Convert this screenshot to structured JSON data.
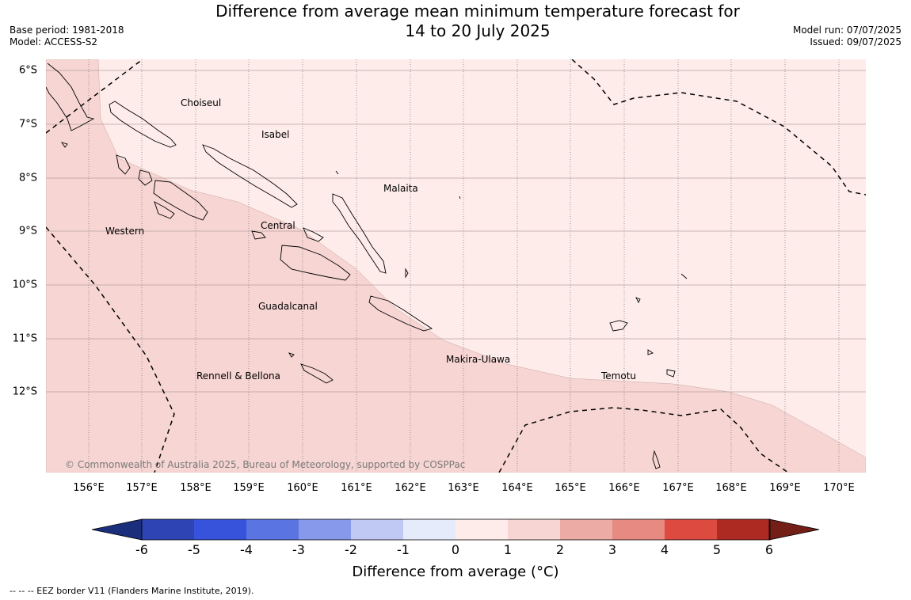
{
  "header": {
    "title_line1": "Difference from average mean minimum temperature forecast for",
    "title_line2": "14 to 20 July 2025",
    "base_period": "Base period: 1981-2018",
    "model": "Model: ACCESS-S2",
    "model_run": "Model run: 07/07/2025",
    "issued": "Issued: 09/07/2025"
  },
  "map": {
    "lat_labels": [
      "6°S",
      "7°S",
      "8°S",
      "9°S",
      "10°S",
      "11°S",
      "12°S"
    ],
    "lon_labels": [
      "156°E",
      "157°E",
      "158°E",
      "159°E",
      "160°E",
      "161°E",
      "162°E",
      "163°E",
      "164°E",
      "165°E",
      "166°E",
      "167°E",
      "168°E",
      "169°E",
      "170°E"
    ],
    "regions": [
      "Choiseul",
      "Isabel",
      "Malaita",
      "Western",
      "Central",
      "Guadalcanal",
      "Makira-Ulawa",
      "Temotu",
      "Rennell & Bellona"
    ],
    "copyright": "© Commonwealth of Australia 2025, Bureau of Meteorology, supported by COSPPac",
    "fill_colors": {
      "zero_to_one": "#fdecea",
      "one_to_two": "#f6d5d3"
    }
  },
  "colorbar": {
    "tick_labels": [
      "-6",
      "-5",
      "-4",
      "-3",
      "-2",
      "-1",
      "0",
      "1",
      "2",
      "3",
      "4",
      "5",
      "6"
    ],
    "colors": [
      "#1b2e7c",
      "#2f44b4",
      "#3753dc",
      "#5a74e2",
      "#8799ea",
      "#c0c9f3",
      "#e6ebfb",
      "#fdecea",
      "#f6d5d3",
      "#edaba6",
      "#e68a82",
      "#dc4a40",
      "#ad2a22",
      "#731e17"
    ],
    "label": "Difference from average (°C)"
  },
  "footnote": "--  --  -- EEZ border V11 (Flanders Marine Institute, 2019)."
}
